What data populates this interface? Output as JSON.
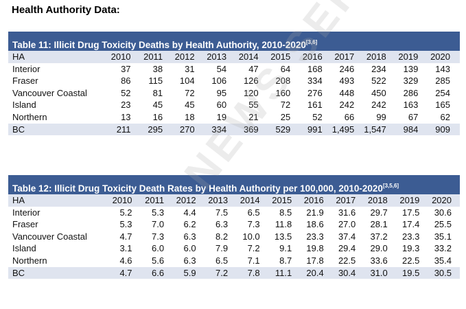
{
  "heading": "Health Authority Data:",
  "table11": {
    "title": "Table 11: Illicit Drug Toxicity Deaths by Health Authority, 2010-2020",
    "refs": "[3,6]",
    "header": [
      "HA",
      "2010",
      "2011",
      "2012",
      "2013",
      "2014",
      "2015",
      "2016",
      "2017",
      "2018",
      "2019",
      "2020"
    ],
    "rows": [
      [
        "Interior",
        "37",
        "38",
        "31",
        "54",
        "47",
        "64",
        "168",
        "246",
        "234",
        "139",
        "143"
      ],
      [
        "Fraser",
        "86",
        "115",
        "104",
        "106",
        "126",
        "208",
        "334",
        "493",
        "522",
        "329",
        "285"
      ],
      [
        "Vancouver Coastal",
        "52",
        "81",
        "72",
        "95",
        "120",
        "160",
        "276",
        "448",
        "450",
        "286",
        "254"
      ],
      [
        "Island",
        "23",
        "45",
        "45",
        "60",
        "55",
        "72",
        "161",
        "242",
        "242",
        "163",
        "165"
      ],
      [
        "Northern",
        "13",
        "16",
        "18",
        "19",
        "21",
        "25",
        "52",
        "66",
        "99",
        "67",
        "62"
      ],
      [
        "BC",
        "211",
        "295",
        "270",
        "334",
        "369",
        "529",
        "991",
        "1,495",
        "1,547",
        "984",
        "909"
      ]
    ]
  },
  "table12": {
    "title": "Table 12: Illicit Drug Toxicity Death Rates by Health Authority per 100,000, 2010-2020",
    "refs": "[3,5,6]",
    "header": [
      "HA",
      "2010",
      "2011",
      "2012",
      "2013",
      "2014",
      "2015",
      "2016",
      "2017",
      "2018",
      "2019",
      "2020"
    ],
    "rows": [
      [
        "Interior",
        "5.2",
        "5.3",
        "4.4",
        "7.5",
        "6.5",
        "8.5",
        "21.9",
        "31.6",
        "29.7",
        "17.5",
        "30.6"
      ],
      [
        "Fraser",
        "5.3",
        "7.0",
        "6.2",
        "6.3",
        "7.3",
        "11.8",
        "18.6",
        "27.0",
        "28.1",
        "17.4",
        "25.5"
      ],
      [
        "Vancouver Coastal",
        "4.7",
        "7.3",
        "6.3",
        "8.2",
        "10.0",
        "13.5",
        "23.3",
        "37.4",
        "37.2",
        "23.3",
        "35.1"
      ],
      [
        "Island",
        "3.1",
        "6.0",
        "6.0",
        "7.9",
        "7.2",
        "9.1",
        "19.8",
        "29.4",
        "29.0",
        "19.3",
        "33.2"
      ],
      [
        "Northern",
        "4.6",
        "5.6",
        "6.3",
        "6.5",
        "7.1",
        "8.7",
        "17.8",
        "22.5",
        "33.6",
        "22.5",
        "35.4"
      ],
      [
        "BC",
        "4.7",
        "6.6",
        "5.9",
        "7.2",
        "7.8",
        "11.1",
        "20.4",
        "30.4",
        "31.0",
        "19.5",
        "30.5"
      ]
    ]
  },
  "watermark": "NEWS SERVICE",
  "colors": {
    "title_bar": "#3c5c93",
    "shaded_row": "#dfe4ef"
  }
}
